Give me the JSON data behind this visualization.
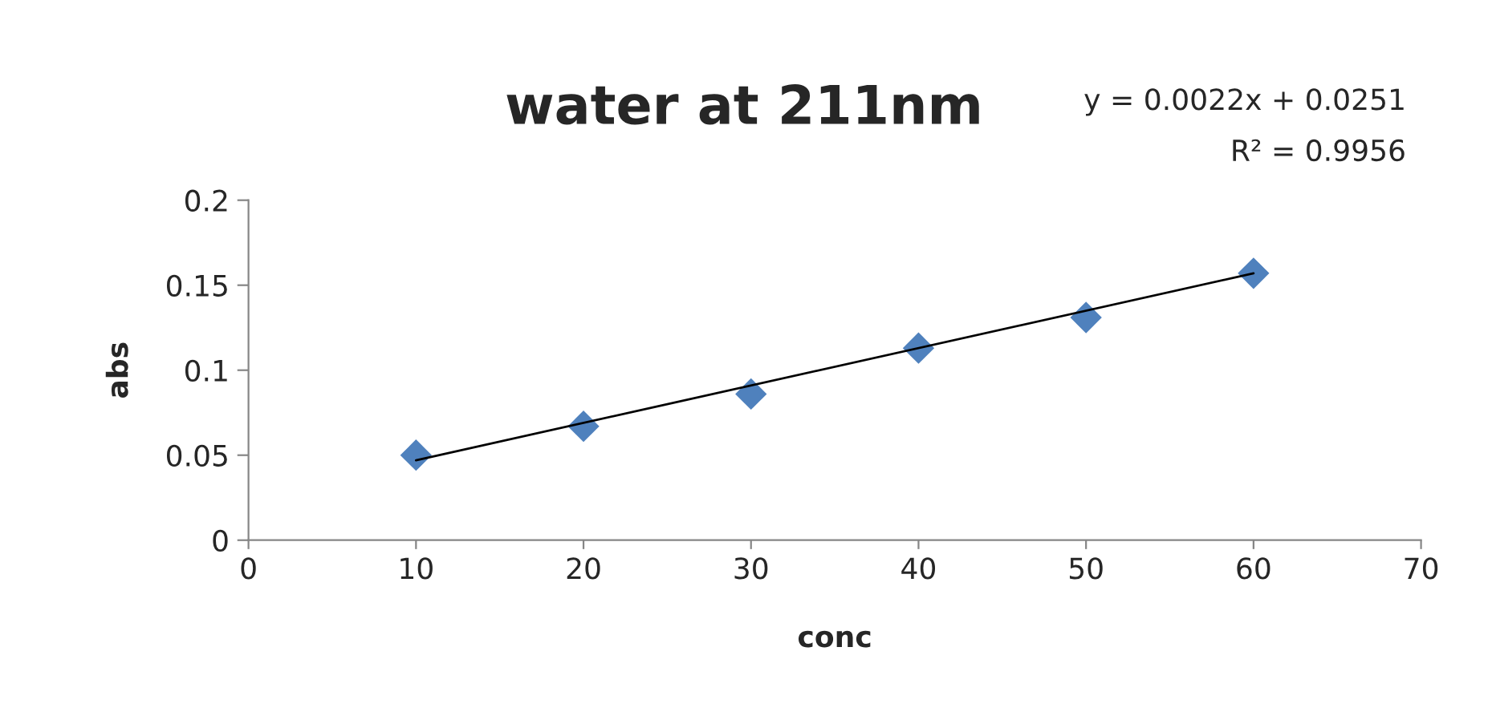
{
  "chart_data": {
    "type": "scatter",
    "title": "water at 211nm",
    "xlabel": "conc",
    "ylabel": "abs",
    "series": [
      {
        "type": "scatter",
        "color": "#4f81bd",
        "marker": "diamond",
        "x": [
          10,
          20,
          30,
          40,
          50,
          60
        ],
        "values": [
          0.05,
          0.067,
          0.086,
          0.113,
          0.131,
          0.157
        ]
      },
      {
        "type": "line",
        "color": "#000000",
        "marker": "none",
        "line_style": "solid",
        "x": [
          10,
          60
        ],
        "values": [
          0.047,
          0.157
        ]
      }
    ],
    "xlim": [
      0,
      70
    ],
    "xticks": [
      0,
      10,
      20,
      30,
      40,
      50,
      60,
      70
    ],
    "ylim": [
      0,
      0.2
    ],
    "yticks": [
      0,
      0.05,
      0.1,
      0.15,
      0.2
    ],
    "grid": false,
    "legend": false,
    "annotations": [
      "y = 0.0022x + 0.0251",
      "R² = 0.9956"
    ]
  }
}
